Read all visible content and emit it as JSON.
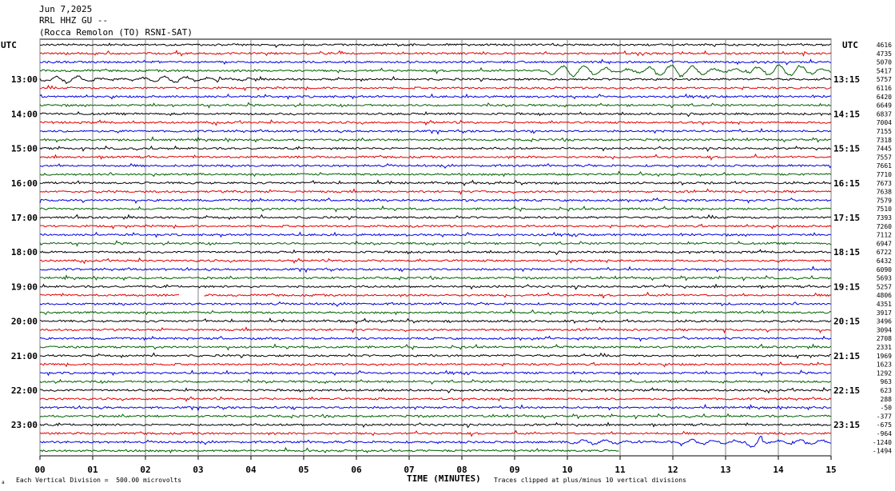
{
  "header": {
    "date": "Jun 7,2025",
    "channel": "RRL HHZ GU --",
    "station": "(Rocca Remolon (TO) RSNI-SAT)"
  },
  "utc_label_left": "UTC",
  "utc_label_right": "UTC",
  "footer": {
    "division": "Each Vertical Division =  500.00 microvolts",
    "xlabel": "TIME (MINUTES)",
    "clip_note": "Traces clipped at plus/minus 10 vertical divisions",
    "corner_mark": "a"
  },
  "chart_data": {
    "type": "line",
    "title": "RRL HHZ GU --",
    "xlabel": "TIME (MINUTES)",
    "x_ticks": [
      "00",
      "01",
      "02",
      "03",
      "04",
      "05",
      "06",
      "07",
      "08",
      "09",
      "10",
      "11",
      "12",
      "13",
      "14",
      "15"
    ],
    "xlim": [
      0,
      15
    ],
    "rows_per_hour": 4,
    "trace_minutes": 15,
    "trace_colors": [
      "#000000",
      "#e00000",
      "#0000e0",
      "#006000"
    ],
    "left_hour_labels": [
      "13:00",
      "14:00",
      "15:00",
      "16:00",
      "17:00",
      "18:00",
      "19:00",
      "20:00",
      "21:00",
      "22:00",
      "23:00"
    ],
    "right_hour_labels": [
      "13:15",
      "14:15",
      "15:15",
      "16:15",
      "17:15",
      "18:15",
      "19:15",
      "20:15",
      "21:15",
      "22:15",
      "23:15"
    ],
    "right_offsets": [
      "4616",
      "4735",
      "5070",
      "5417",
      "5757",
      "6116",
      "6420",
      "6649",
      "6837",
      "7004",
      "7155",
      "7318",
      "7445",
      "7557",
      "7661",
      "7710",
      "7673",
      "7638",
      "7579",
      "7510",
      "7393",
      "7260",
      "7112",
      "6947",
      "6722",
      "6432",
      "6090",
      "5693",
      "5257",
      "4806",
      "4351",
      "3917",
      "3496",
      "3094",
      "2708",
      "2331",
      "1969",
      "1623",
      "1292",
      "963",
      "623",
      "288",
      "-50",
      "-377",
      "-675",
      "-964",
      "-1240",
      "-1494"
    ],
    "grid": true,
    "events": [
      {
        "row": 3,
        "start_min": 9.6,
        "end_min": 15,
        "amplitude": 8
      },
      {
        "row": 4,
        "start_min": 0,
        "end_min": 4,
        "amplitude": 4
      },
      {
        "row": 46,
        "start_min": 10,
        "end_min": 15,
        "amplitude": 3
      },
      {
        "row": 46,
        "start_min": 13.4,
        "end_min": 13.7,
        "amplitude": 10
      }
    ],
    "gaps": [
      {
        "row": 29,
        "start_min": 2.65,
        "end_min": 3.1
      },
      {
        "row": 47,
        "start_min": 11.0,
        "end_min": 15
      }
    ]
  }
}
